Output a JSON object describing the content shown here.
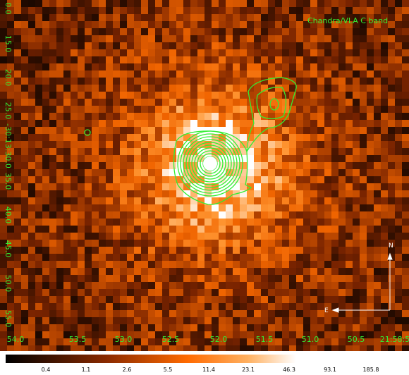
{
  "image": {
    "label": "Chandra/VLA C band",
    "ra_labels": [
      "54.0",
      "53.5",
      "53.0",
      "52.5",
      "52.0",
      "51.5",
      "51.0",
      "50.5",
      "21:58:5"
    ],
    "dec_labels": [
      "0.0",
      "15.0",
      "20.0",
      "25.0",
      "-30:13:30.0",
      "35.0",
      "40.0",
      "45.0",
      "50.0",
      "55.0"
    ],
    "compass": {
      "north": "N",
      "east": "E"
    }
  },
  "colorbar": {
    "labels": [
      "0.4",
      "1.1",
      "2.6",
      "5.5",
      "11.4",
      "23.1",
      "46.3",
      "93.1",
      "185.8"
    ]
  }
}
